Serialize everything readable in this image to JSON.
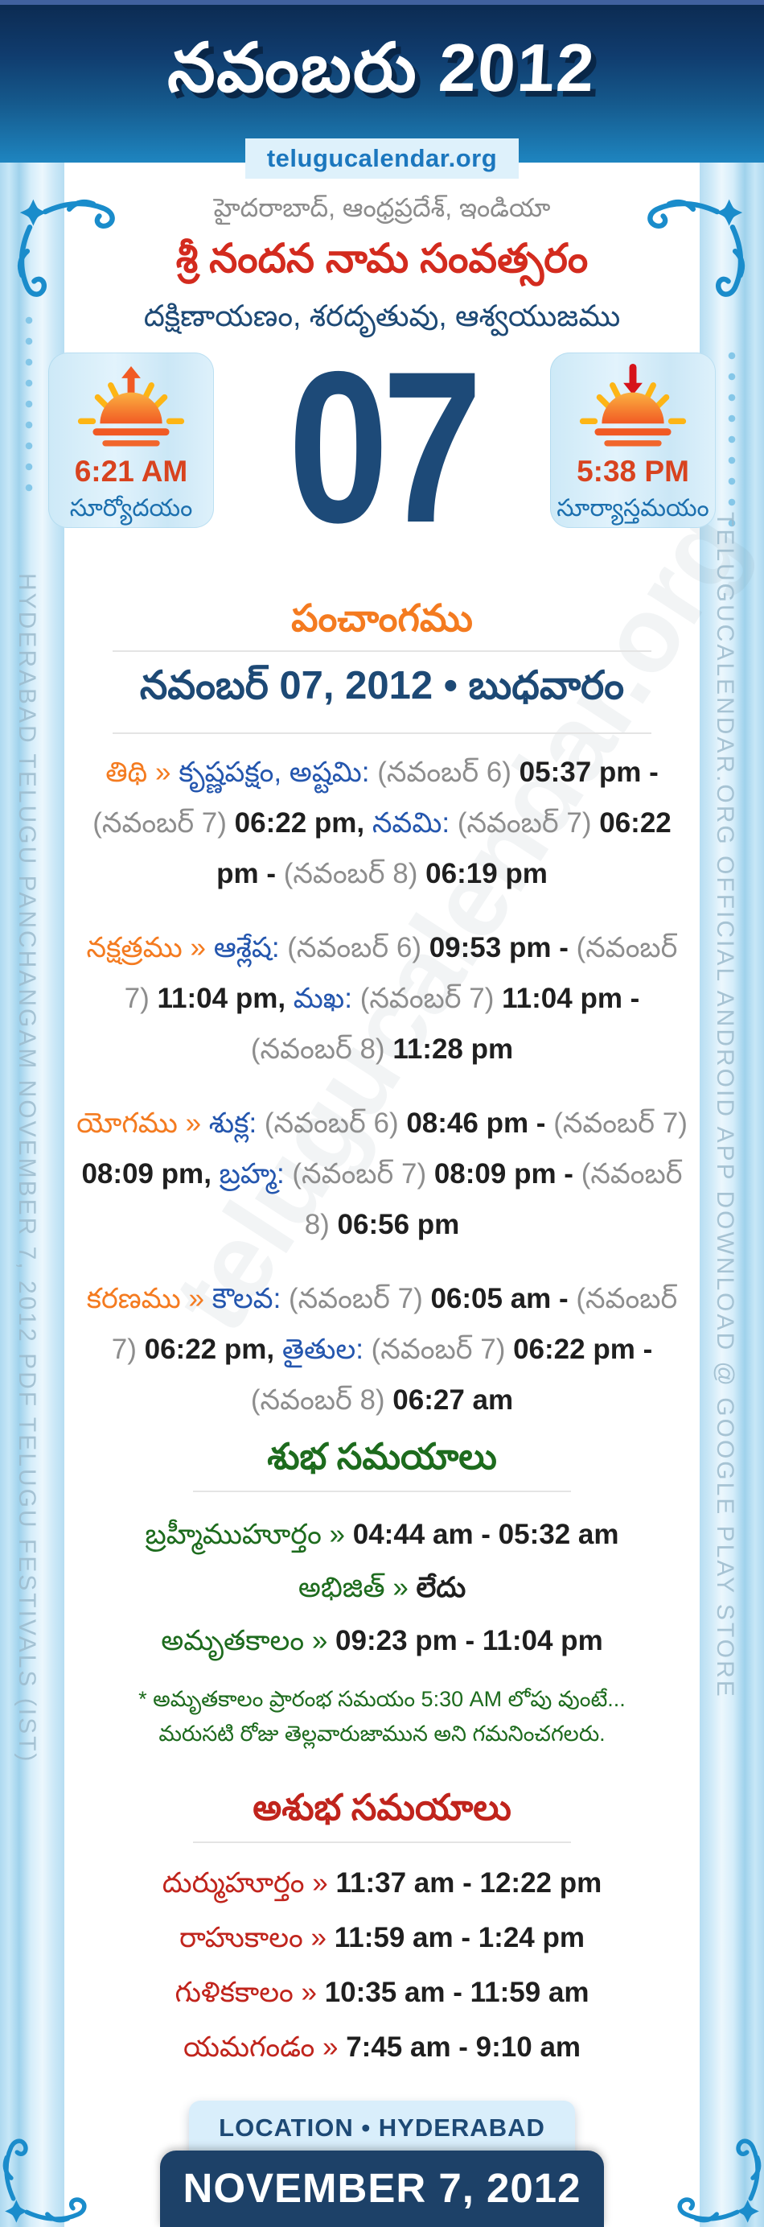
{
  "header": {
    "title": "నవంబరు 2012",
    "site": "telugucalendar.org"
  },
  "intro": {
    "location_line": "హైదరాబాద్, ఆంధ్రప్రదేశ్, ఇండియా",
    "year_line": "శ్రీ నందన నామ సంవత్సరం",
    "season_line": "దక్షిణాయణం, శరదృతువు, ఆశ్వయుజము"
  },
  "sun": {
    "day_number": "07",
    "sunrise_time": "6:21 AM",
    "sunrise_label": "సూర్యోదయం",
    "sunset_time": "5:38 PM",
    "sunset_label": "సూర్యాస్తమయం"
  },
  "panchangam": {
    "heading": "పంచాంగము",
    "date_line": "నవంబర్ 07, 2012 • బుధవారం",
    "rows": [
      {
        "name": "tithi",
        "segments": [
          {
            "t": "తిథి",
            "c": "orange"
          },
          {
            "t": " » ",
            "c": "orange"
          },
          {
            "t": "కృష్ణపక్షం, అష్టమి",
            "c": "blue"
          },
          {
            "t": ": ",
            "c": "blue"
          },
          {
            "t": "(నవంబర్ 6) ",
            "c": "gray"
          },
          {
            "t": "05:37 pm",
            "c": "dark"
          },
          {
            "t": " - ",
            "c": "dark"
          },
          {
            "t": "(నవంబర్ 7) ",
            "c": "gray"
          },
          {
            "t": "06:22 pm",
            "c": "dark"
          },
          {
            "t": ", ",
            "c": "dark"
          },
          {
            "t": "నవమి",
            "c": "blue"
          },
          {
            "t": ": ",
            "c": "blue"
          },
          {
            "t": "(నవంబర్ 7) ",
            "c": "gray"
          },
          {
            "t": "06:22 pm",
            "c": "dark"
          },
          {
            "t": " - ",
            "c": "dark"
          },
          {
            "t": "(నవంబర్ 8) ",
            "c": "gray"
          },
          {
            "t": "06:19 pm",
            "c": "dark"
          }
        ]
      },
      {
        "name": "nakshatram",
        "segments": [
          {
            "t": "నక్షత్రము",
            "c": "orange"
          },
          {
            "t": " » ",
            "c": "orange"
          },
          {
            "t": "ఆశ్లేష",
            "c": "blue"
          },
          {
            "t": ": ",
            "c": "blue"
          },
          {
            "t": "(నవంబర్ 6) ",
            "c": "gray"
          },
          {
            "t": "09:53 pm",
            "c": "dark"
          },
          {
            "t": " - ",
            "c": "dark"
          },
          {
            "t": "(నవంబర్ 7) ",
            "c": "gray"
          },
          {
            "t": "11:04 pm",
            "c": "dark"
          },
          {
            "t": ", ",
            "c": "dark"
          },
          {
            "t": "మఖ",
            "c": "blue"
          },
          {
            "t": ": ",
            "c": "blue"
          },
          {
            "t": "(నవంబర్ 7) ",
            "c": "gray"
          },
          {
            "t": "11:04 pm",
            "c": "dark"
          },
          {
            "t": " - ",
            "c": "dark"
          },
          {
            "t": "(నవంబర్ 8) ",
            "c": "gray"
          },
          {
            "t": "11:28 pm",
            "c": "dark"
          }
        ]
      },
      {
        "name": "yogam",
        "segments": [
          {
            "t": "యోగము",
            "c": "orange"
          },
          {
            "t": " » ",
            "c": "orange"
          },
          {
            "t": "శుక్ల",
            "c": "blue"
          },
          {
            "t": ": ",
            "c": "blue"
          },
          {
            "t": "(నవంబర్ 6) ",
            "c": "gray"
          },
          {
            "t": "08:46 pm",
            "c": "dark"
          },
          {
            "t": " - ",
            "c": "dark"
          },
          {
            "t": "(నవంబర్ 7) ",
            "c": "gray"
          },
          {
            "t": "08:09 pm",
            "c": "dark"
          },
          {
            "t": ", ",
            "c": "dark"
          },
          {
            "t": "బ్రహ్మ",
            "c": "blue"
          },
          {
            "t": ": ",
            "c": "blue"
          },
          {
            "t": "(నవంబర్ 7) ",
            "c": "gray"
          },
          {
            "t": "08:09 pm",
            "c": "dark"
          },
          {
            "t": " - ",
            "c": "dark"
          },
          {
            "t": "(నవంబర్ 8) ",
            "c": "gray"
          },
          {
            "t": "06:56 pm",
            "c": "dark"
          }
        ]
      },
      {
        "name": "karanam",
        "segments": [
          {
            "t": "కరణము",
            "c": "orange"
          },
          {
            "t": " » ",
            "c": "orange"
          },
          {
            "t": "కౌలవ",
            "c": "blue"
          },
          {
            "t": ": ",
            "c": "blue"
          },
          {
            "t": "(నవంబర్ 7) ",
            "c": "gray"
          },
          {
            "t": "06:05 am",
            "c": "dark"
          },
          {
            "t": " - ",
            "c": "dark"
          },
          {
            "t": "(నవంబర్ 7) ",
            "c": "gray"
          },
          {
            "t": "06:22 pm",
            "c": "dark"
          },
          {
            "t": ", ",
            "c": "dark"
          },
          {
            "t": "తైతుల",
            "c": "blue"
          },
          {
            "t": ": ",
            "c": "blue"
          },
          {
            "t": "(నవంబర్ 7) ",
            "c": "gray"
          },
          {
            "t": "06:22 pm",
            "c": "dark"
          },
          {
            "t": " - ",
            "c": "dark"
          },
          {
            "t": "(నవంబర్ 8) ",
            "c": "gray"
          },
          {
            "t": "06:27 am",
            "c": "dark"
          }
        ]
      }
    ]
  },
  "auspicious": {
    "heading": "శుభ సమయాలు",
    "rows": [
      {
        "name": "brahmi-muhurtam",
        "segments": [
          {
            "t": "బ్రహ్మీముహూర్తం",
            "c": "green"
          },
          {
            "t": " » ",
            "c": "green"
          },
          {
            "t": "04:44 am - 05:32 am",
            "c": "dark"
          }
        ]
      },
      {
        "name": "abhijit",
        "segments": [
          {
            "t": "అభిజిత్",
            "c": "green"
          },
          {
            "t": " » ",
            "c": "green"
          },
          {
            "t": "లేదు",
            "c": "dark"
          }
        ]
      },
      {
        "name": "amrutakalam",
        "segments": [
          {
            "t": "అమృతకాలం",
            "c": "green"
          },
          {
            "t": " » ",
            "c": "green"
          },
          {
            "t": "09:23 pm - 11:04 pm",
            "c": "dark"
          }
        ]
      }
    ],
    "note": "* అమృతకాలం ప్రారంభ సమయం 5:30 AM లోపు వుంటే... మరుసటి రోజు తెల్లవారుజామున అని గమనించగలరు."
  },
  "inauspicious": {
    "heading": "అశుభ సమయాలు",
    "rows": [
      {
        "name": "durmuhurtam",
        "segments": [
          {
            "t": "దుర్ముహూర్తం",
            "c": "red"
          },
          {
            "t": " » ",
            "c": "red"
          },
          {
            "t": "11:37 am - 12:22 pm",
            "c": "dark"
          }
        ]
      },
      {
        "name": "rahukalam",
        "segments": [
          {
            "t": "రాహుకాలం",
            "c": "red"
          },
          {
            "t": " » ",
            "c": "red"
          },
          {
            "t": "11:59 am - 1:24 pm",
            "c": "dark"
          }
        ]
      },
      {
        "name": "gulikakalam",
        "segments": [
          {
            "t": "గుళికకాలం",
            "c": "red"
          },
          {
            "t": " » ",
            "c": "red"
          },
          {
            "t": "10:35 am - 11:59 am",
            "c": "dark"
          }
        ]
      },
      {
        "name": "yamagandam",
        "segments": [
          {
            "t": "యమగండం",
            "c": "red"
          },
          {
            "t": " » ",
            "c": "red"
          },
          {
            "t": "7:45 am - 9:10 am",
            "c": "dark"
          }
        ]
      }
    ]
  },
  "footer": {
    "location": "LOCATION • HYDERABAD",
    "date": "NOVEMBER 7, 2012"
  },
  "side_text": {
    "left": "HYDERABAD TELUGU PANCHANGAM NOVEMBER 7, 2012 PDF TELUGU FESTIVALS (IST)",
    "right": "TELUGUCALENDAR.ORG OFFICIAL ANDROID APP DOWNLOAD @ GOOGLE PLAY STORE"
  },
  "watermark": "telugucalendar.org",
  "colors": {
    "header_top": "#0c2b52",
    "header_bottom": "#1e85c0",
    "accent_orange": "#f47b20",
    "title_red": "#d32b1e",
    "navy": "#1d4975",
    "name_blue": "#2456ae",
    "paren_gray": "#8d8d8d",
    "good_green": "#1d6b1d",
    "bad_red": "#c0241c",
    "flourish_blue": "#1a8ccb",
    "sun_time_red": "#d8431f",
    "sun_label_blue": "#1b6fae"
  }
}
